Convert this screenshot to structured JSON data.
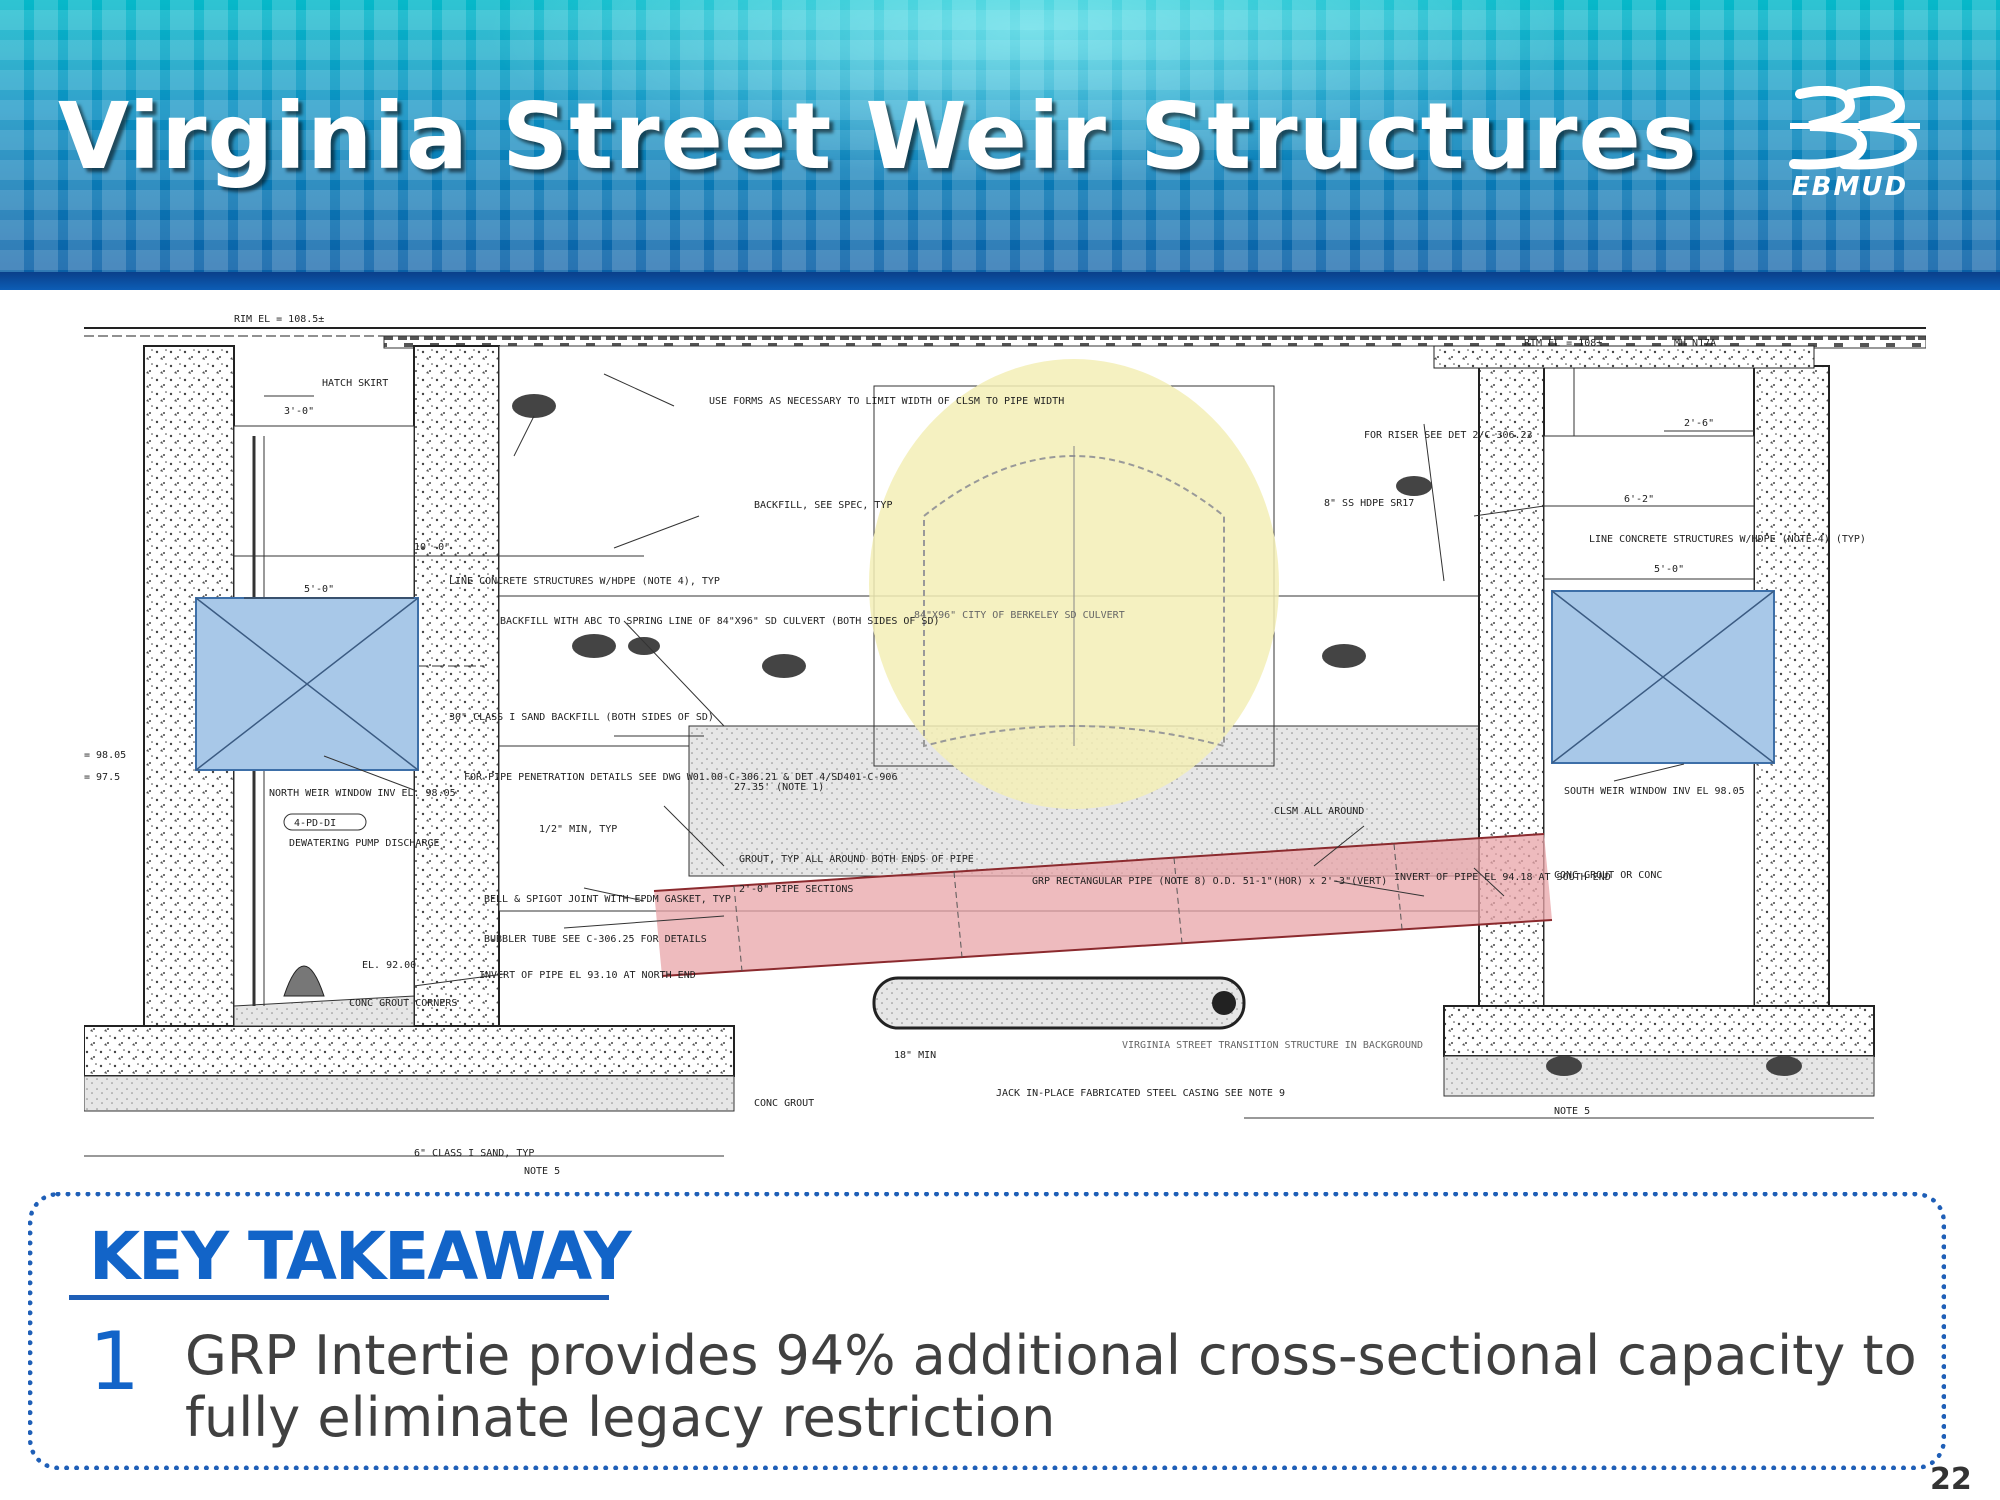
{
  "header": {
    "title": "Virginia Street Weir Structures",
    "logo_text": "EBMUD"
  },
  "drawing": {
    "labels": {
      "rim_left": "RIM EL = 108.5±",
      "hatch_skirt": "HATCH SKIRT",
      "dim_3_0": "3'-0\"",
      "dim_10_0": "10'-0\"",
      "dim_5_0_left": "5'-0\"",
      "use_forms": "USE FORMS AS NECESSARY TO LIMIT WIDTH OF CLSM TO PIPE WIDTH",
      "backfill_spec": "BACKFILL, SEE SPEC, TYP",
      "line_concrete_left": "LINE CONCRETE STRUCTURES W/HDPE (NOTE 4), TYP",
      "backfill_abc": "BACKFILL WITH ABC TO SPRING LINE OF 84\"X96\" SD CULVERT (BOTH SIDES OF SD)",
      "sand_backfill": "30\" CLASS I SAND BACKFILL (BOTH SIDES OF SD)",
      "pipe_penetration": "FOR PIPE PENETRATION DETAILS SEE DWG W01.00-C-306.21 & DET 4/SD401-C-906",
      "half_min": "1/2\" MIN, TYP",
      "north_weir": "NORTH WEIR WINDOW INV EL. 98.05",
      "pd_tag": "4-PD-DI",
      "dewatering": "DEWATERING PUMP DISCHARGE",
      "bell_spigot": "BELL & SPIGOT JOINT WITH EPDM GASKET, TYP",
      "bubbler": "BUBBLER TUBE SEE C-306.25 FOR DETAILS",
      "el_92": "EL. 92.00",
      "invert_north": "INVERT OF PIPE EL 93.10 AT NORTH END",
      "conc_grout_corners": "CONC GROUT CORNERS",
      "conc_grout": "CONC GROUT",
      "class_sand": "6\" CLASS I SAND, TYP",
      "note5_left": "NOTE 5",
      "culvert": "84\"X96\" CITY OF BERKELEY SD CULVERT",
      "grout_typ": "GROUT, TYP ALL AROUND BOTH ENDS OF PIPE",
      "dim_27": "27.35' (NOTE 1)",
      "sections": "2'-0\" PIPE SECTIONS",
      "grp_pipe": "GRP RECTANGULAR PIPE (NOTE 8) O.D. 51-1\"(HOR) x 2'-3\"(VERT)",
      "clsm": "CLSM ALL AROUND",
      "min_18": "18\" MIN",
      "jack": "JACK IN-PLACE FABRICATED STEEL CASING SEE NOTE 9",
      "transition": "VIRGINIA STREET TRANSITION STRUCTURE IN BACKGROUND",
      "rim_right": "RIM EL = 108±",
      "mh": "MH N17A",
      "riser": "FOR RISER SEE DET 2/C-306.23",
      "ss_hdpe": "8\" SS HDPE SR17",
      "dim_2_6": "2'-6\"",
      "dim_6_2": "6'-2\"",
      "line_concrete_right": "LINE CONCRETE STRUCTURES W/HDPE (NOTE 4) (TYP)",
      "dim_5_0_right": "5'-0\"",
      "south_weir": "SOUTH WEIR WINDOW INV EL 98.05",
      "invert_south": "INVERT OF PIPE EL 94.18 AT SOUTH END",
      "conc_grout_right": "CONC GROUT OR CONC",
      "note5_right": "NOTE 5",
      "el_98": "= 98.05",
      "el_97": "= 97.5"
    },
    "colors": {
      "weir_window": "#a8c8e8",
      "culvert_highlight": "#f3efb6",
      "grp_pipe_highlight": "#e8a4a8"
    }
  },
  "takeaway": {
    "title": "KEY TAKEAWAY",
    "number": "1",
    "text": "GRP Intertie provides 94% additional cross-sectional capacity to fully eliminate legacy restriction"
  },
  "page_number": "22"
}
